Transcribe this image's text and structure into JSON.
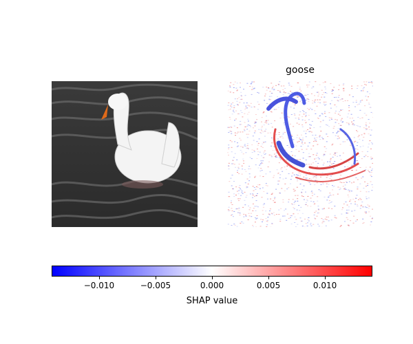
{
  "chart_data": {
    "type": "heatmap",
    "subtype": "shap-image-explanation",
    "panels": [
      {
        "name": "original-image",
        "title": ""
      },
      {
        "name": "shap-map",
        "title": "goose"
      }
    ],
    "colorbar": {
      "label": "SHAP value",
      "vmin": -0.0142,
      "vmax": 0.0142,
      "ticks": [
        -0.01,
        -0.005,
        0.0,
        0.005,
        0.01
      ],
      "tick_labels": [
        "−0.010",
        "−0.005",
        "0.000",
        "0.005",
        "0.010"
      ],
      "colors": {
        "negative": "#0000ff",
        "zero": "#ffffff",
        "positive": "#ff0000"
      }
    }
  }
}
